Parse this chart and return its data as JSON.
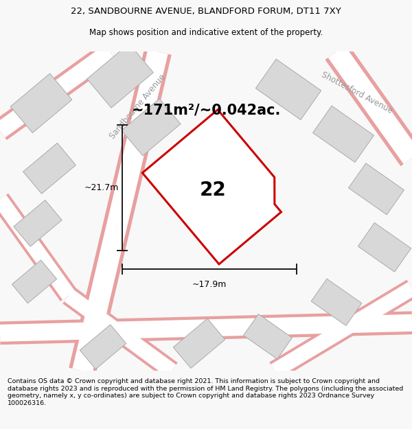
{
  "title_line1": "22, SANDBOURNE AVENUE, BLANDFORD FORUM, DT11 7XY",
  "title_line2": "Map shows position and indicative extent of the property.",
  "footer_text": "Contains OS data © Crown copyright and database right 2021. This information is subject to Crown copyright and database rights 2023 and is reproduced with the permission of HM Land Registry. The polygons (including the associated geometry, namely x, y co-ordinates) are subject to Crown copyright and database rights 2023 Ordnance Survey 100026316.",
  "area_label": "~171m²/~0.042ac.",
  "property_number": "22",
  "dim_width": "~17.9m",
  "dim_height": "~21.7m",
  "bg_color": "#f8f8f8",
  "map_bg_color": "#efefef",
  "road_color": "#ffffff",
  "road_outline_color": "#e8a0a0",
  "building_color": "#d8d8d8",
  "building_outline_color": "#aaaaaa",
  "property_fill": "#ffffff",
  "property_outline_color": "#cc0000",
  "dim_line_color": "#1a1a1a",
  "title_fontsize": 9.5,
  "subtitle_fontsize": 8.5,
  "footer_fontsize": 6.8,
  "label_fontsize": 15,
  "number_fontsize": 20
}
